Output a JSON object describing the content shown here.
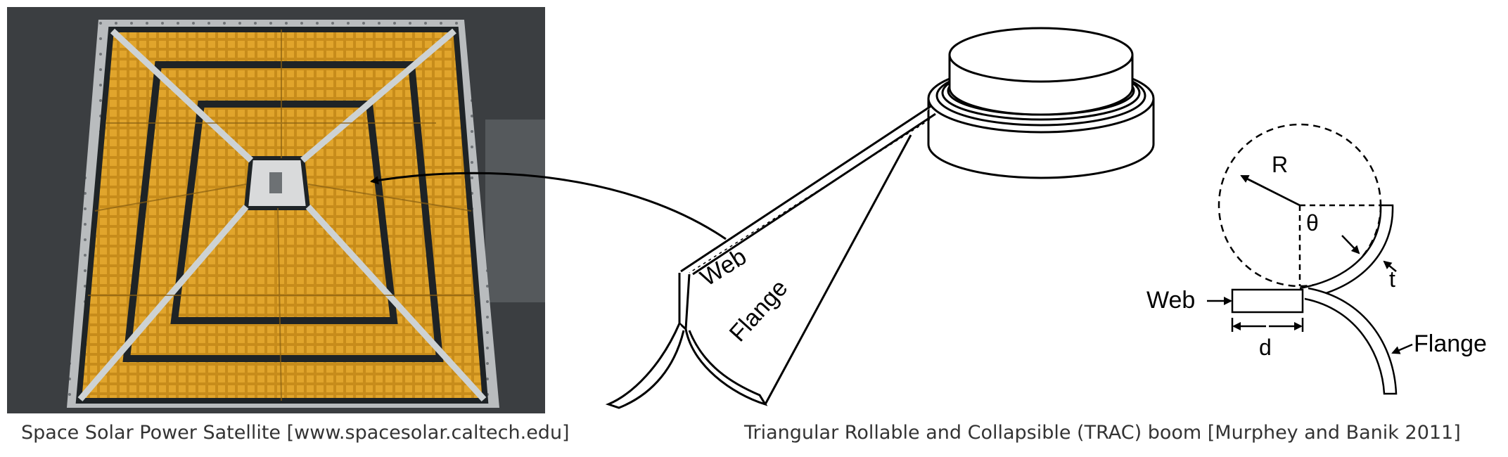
{
  "captions": {
    "left": "Space Solar Power Satellite [www.spacesolar.caltech.edu]",
    "right": "Triangular Rollable and Collapsible (TRAC) boom [Murphey and Banik 2011]"
  },
  "boom_labels": {
    "web": "Web",
    "flange": "Flange"
  },
  "cross_section_labels": {
    "radius": "R",
    "angle": "θ",
    "thickness": "t",
    "web": "Web",
    "width": "d",
    "flange": "Flange"
  },
  "colors": {
    "kapton": "#c98a16",
    "frame": "#1e2326",
    "floor": "#3a3d40",
    "ink": "#000000"
  }
}
